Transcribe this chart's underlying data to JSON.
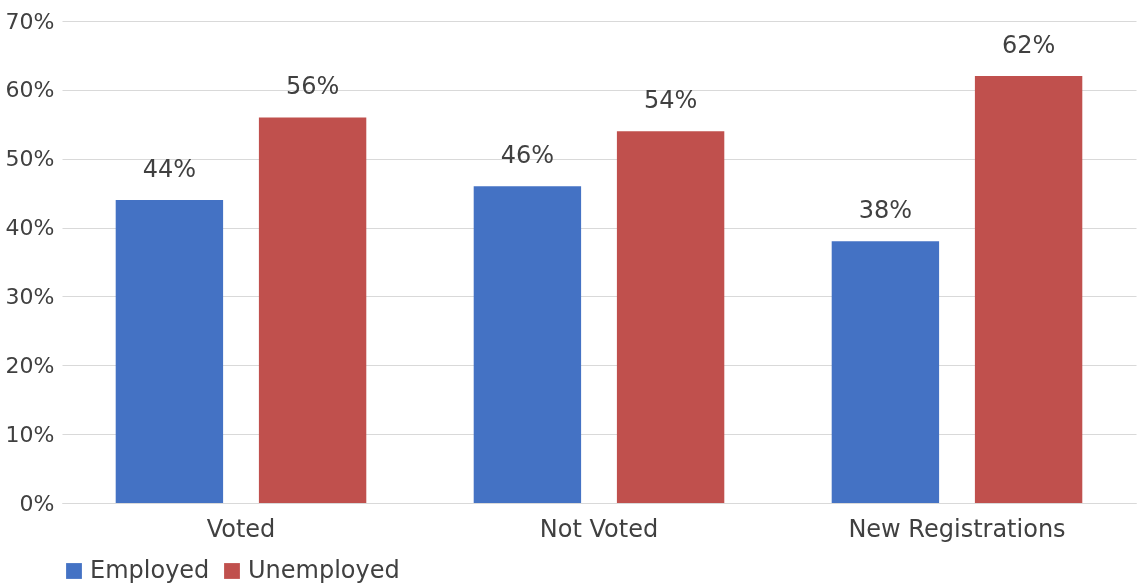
{
  "chart_data": {
    "type": "bar",
    "categories": [
      "Voted",
      "Not Voted",
      "New Registrations"
    ],
    "series": [
      {
        "name": "Employed",
        "color": "#4472c4",
        "values": [
          44,
          46,
          38
        ],
        "value_labels": [
          "44%",
          "46%",
          "38%"
        ]
      },
      {
        "name": "Unemployed",
        "color": "#c0504d",
        "values": [
          56,
          54,
          62
        ],
        "value_labels": [
          "56%",
          "54%",
          "62%"
        ]
      }
    ],
    "ylim": [
      0,
      70
    ],
    "yticks": [
      {
        "value": 0,
        "label": "0%"
      },
      {
        "value": 10,
        "label": "10%"
      },
      {
        "value": 20,
        "label": "20%"
      },
      {
        "value": 30,
        "label": "30%"
      },
      {
        "value": 40,
        "label": "40%"
      },
      {
        "value": 50,
        "label": "50%"
      },
      {
        "value": 60,
        "label": "60%"
      },
      {
        "value": 70,
        "label": "70%"
      }
    ],
    "grid": "y",
    "legend": "bottom"
  }
}
